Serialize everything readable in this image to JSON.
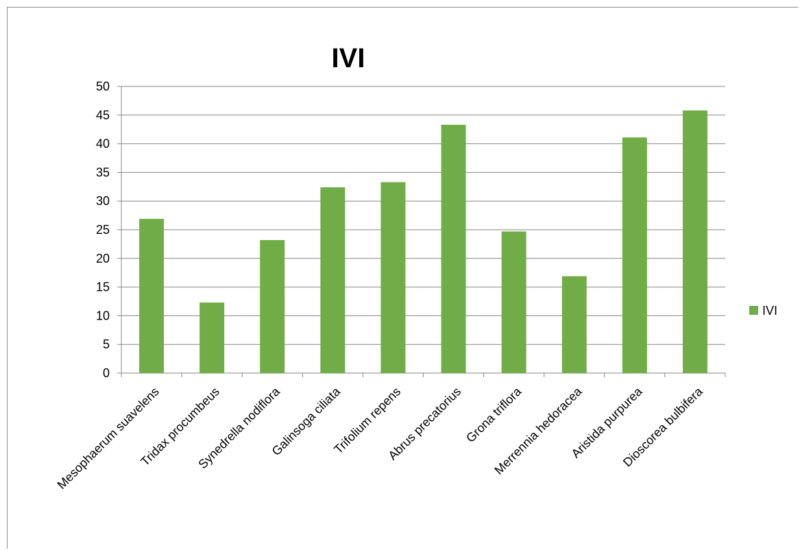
{
  "chart_data": {
    "type": "bar",
    "title": "IVI",
    "xlabel": "",
    "ylabel": "",
    "ylim": [
      0,
      50
    ],
    "yticks": [
      0,
      5,
      10,
      15,
      20,
      25,
      30,
      35,
      40,
      45,
      50
    ],
    "grid": true,
    "legend_position": "right",
    "categories": [
      "Mesophaerum suavelens",
      "Tridax procumbeus",
      "Synedrella nodiflora",
      "Galinsoga ciliata",
      "Trifolium repens",
      "Abrus precatorius",
      "Grona triflora",
      "Merrennia hedoracea",
      "Aristida purpurea",
      "Dioscorea bulbifera"
    ],
    "series": [
      {
        "name": "IVI",
        "color": "#70ad47",
        "values": [
          26.9,
          12.3,
          23.2,
          32.4,
          33.3,
          43.3,
          24.7,
          16.9,
          41.1,
          45.8
        ]
      }
    ]
  }
}
